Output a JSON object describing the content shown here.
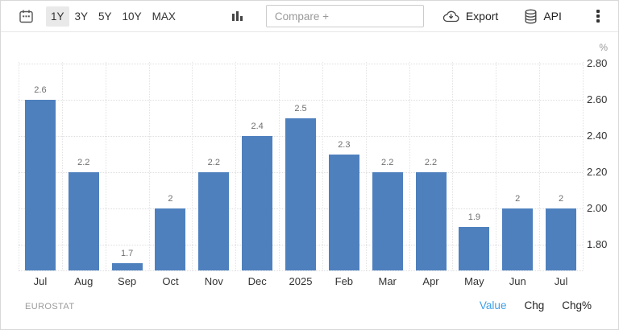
{
  "toolbar": {
    "ranges": [
      {
        "label": "1Y",
        "selected": true
      },
      {
        "label": "3Y",
        "selected": false
      },
      {
        "label": "5Y",
        "selected": false
      },
      {
        "label": "10Y",
        "selected": false
      },
      {
        "label": "MAX",
        "selected": false
      }
    ],
    "compare_placeholder": "Compare +",
    "export_label": "Export",
    "api_label": "API"
  },
  "chart_data": {
    "type": "bar",
    "categories": [
      "Jul",
      "Aug",
      "Sep",
      "Oct",
      "Nov",
      "Dec",
      "2025",
      "Feb",
      "Mar",
      "Apr",
      "May",
      "Jun",
      "Jul"
    ],
    "values": [
      2.6,
      2.2,
      1.7,
      2.0,
      2.2,
      2.4,
      2.5,
      2.3,
      2.2,
      2.2,
      1.9,
      2.0,
      2.0
    ],
    "value_labels": [
      "2.6",
      "2.2",
      "1.7",
      "2",
      "2.2",
      "2.4",
      "2.5",
      "2.3",
      "2.2",
      "2.2",
      "1.9",
      "2",
      "2"
    ],
    "yticks": [
      1.8,
      2.0,
      2.2,
      2.4,
      2.6,
      2.8
    ],
    "ytick_labels": [
      "1.80",
      "2.00",
      "2.20",
      "2.40",
      "2.60",
      "2.80"
    ],
    "ylim": [
      1.66,
      2.81
    ],
    "ylabel": "%",
    "bar_color": "#4e80be",
    "grid": true,
    "legend_position": "none",
    "title": ""
  },
  "footer": {
    "source": "EUROSTAT",
    "tabs": [
      {
        "label": "Value",
        "active": true
      },
      {
        "label": "Chg",
        "active": false
      },
      {
        "label": "Chg%",
        "active": false
      }
    ]
  }
}
